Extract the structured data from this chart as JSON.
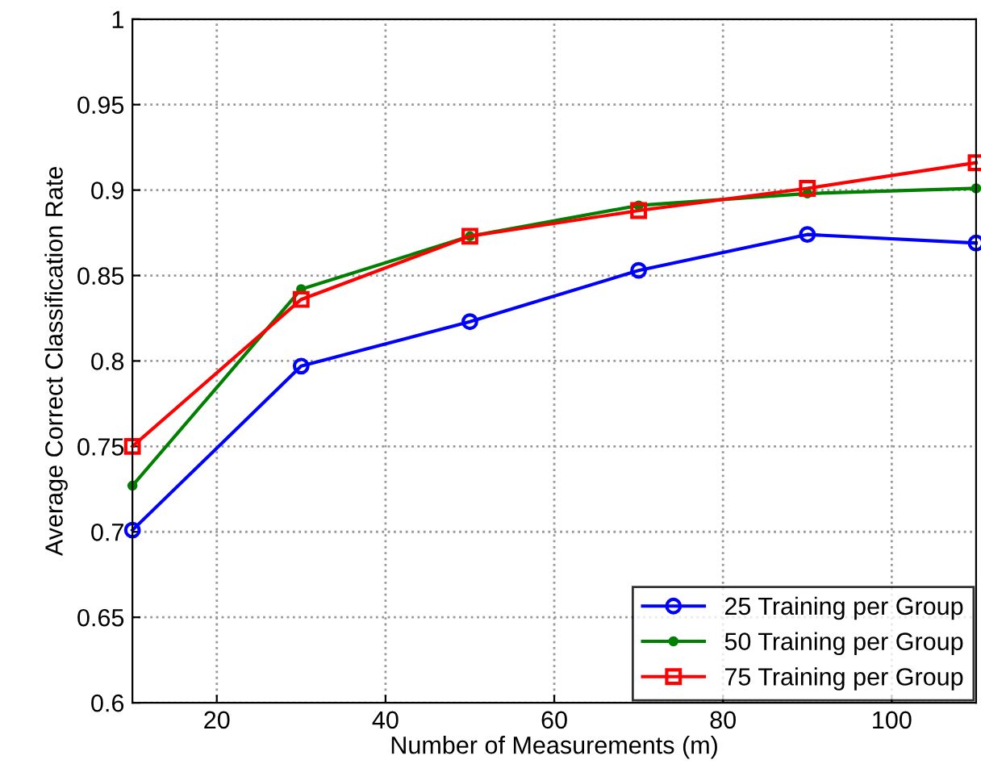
{
  "chart_data": {
    "type": "line",
    "xlabel": "Number of Measurements (m)",
    "ylabel": "Average Correct Classification Rate",
    "x": [
      10,
      30,
      50,
      70,
      90,
      110
    ],
    "series": [
      {
        "name": "25 Training per Group",
        "color": "#0000ff",
        "marker": "circle",
        "values": [
          0.701,
          0.797,
          0.823,
          0.853,
          0.874,
          0.869
        ]
      },
      {
        "name": "50 Training per Group",
        "color": "#008000",
        "marker": "point",
        "values": [
          0.727,
          0.842,
          0.873,
          0.891,
          0.898,
          0.901
        ]
      },
      {
        "name": "75 Training per Group",
        "color": "#ff0000",
        "marker": "square",
        "values": [
          0.75,
          0.836,
          0.873,
          0.888,
          0.901,
          0.916
        ]
      }
    ],
    "xlim": [
      10,
      110
    ],
    "xticks": [
      20,
      40,
      60,
      80,
      100
    ],
    "ylim": [
      0.6,
      1
    ],
    "yticks": [
      0.6,
      0.65,
      0.7,
      0.75,
      0.8,
      0.85,
      0.9,
      0.95,
      1
    ],
    "grid": true,
    "legend": "bottom right",
    "line_style": "solid"
  }
}
